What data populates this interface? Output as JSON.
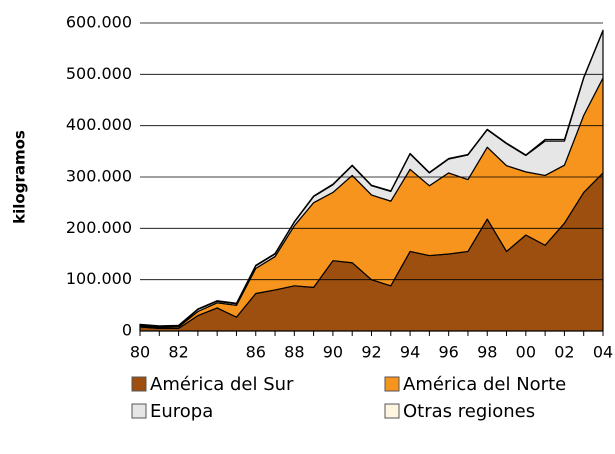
{
  "chart_data": {
    "type": "stacked_area",
    "y_label": "kilogramos",
    "categories": [
      "80",
      null,
      "82",
      null,
      null,
      null,
      "86",
      null,
      "88",
      null,
      "90",
      null,
      "92",
      null,
      "94",
      null,
      "96",
      null,
      "98",
      null,
      "00",
      null,
      "02",
      null,
      "04"
    ],
    "series": [
      {
        "name": "América del Sur",
        "color": "#9c4f0e",
        "values": [
          8000,
          5000,
          5000,
          30000,
          45000,
          27000,
          73000,
          80000,
          88000,
          85000,
          137000,
          133000,
          100000,
          88000,
          155000,
          147000,
          150000,
          155000,
          218000,
          155000,
          187000,
          167000,
          210000,
          270000,
          308000
        ]
      },
      {
        "name": "América del Norte",
        "color": "#f7941d",
        "values": [
          2000,
          2000,
          3000,
          8000,
          10000,
          23000,
          49000,
          65000,
          117000,
          165000,
          133000,
          170000,
          165000,
          165000,
          160000,
          136000,
          158000,
          140000,
          140000,
          167000,
          123000,
          136000,
          113000,
          150000,
          185000
        ]
      },
      {
        "name": "Europa",
        "color": "#e6e6e6",
        "values": [
          2000,
          2000,
          2000,
          4000,
          3000,
          3000,
          5000,
          5000,
          7000,
          12000,
          15000,
          19000,
          18000,
          19000,
          30000,
          25000,
          27000,
          48000,
          34000,
          43000,
          32000,
          67000,
          47000,
          73000,
          92000
        ]
      },
      {
        "name": "Otras regiones",
        "color": "#fdf5e0",
        "values": [
          1000,
          1000,
          1000,
          1000,
          1000,
          1000,
          1000,
          1000,
          1000,
          1000,
          1000,
          1000,
          1000,
          1000,
          1000,
          1000,
          1000,
          1000,
          1000,
          1000,
          1000,
          3000,
          3000,
          1000,
          1000
        ]
      }
    ],
    "ylim": [
      0,
      600000
    ],
    "yticks": [
      0,
      {
        "value": 100000,
        "label": "100.000"
      },
      {
        "value": 200000,
        "label": "200.000"
      },
      {
        "value": 300000,
        "label": "300.000"
      },
      {
        "value": 400000,
        "label": "400.000"
      },
      {
        "value": 500000,
        "label": "500.000"
      },
      {
        "value": 600000,
        "label": "600.000"
      }
    ],
    "grid": true
  }
}
